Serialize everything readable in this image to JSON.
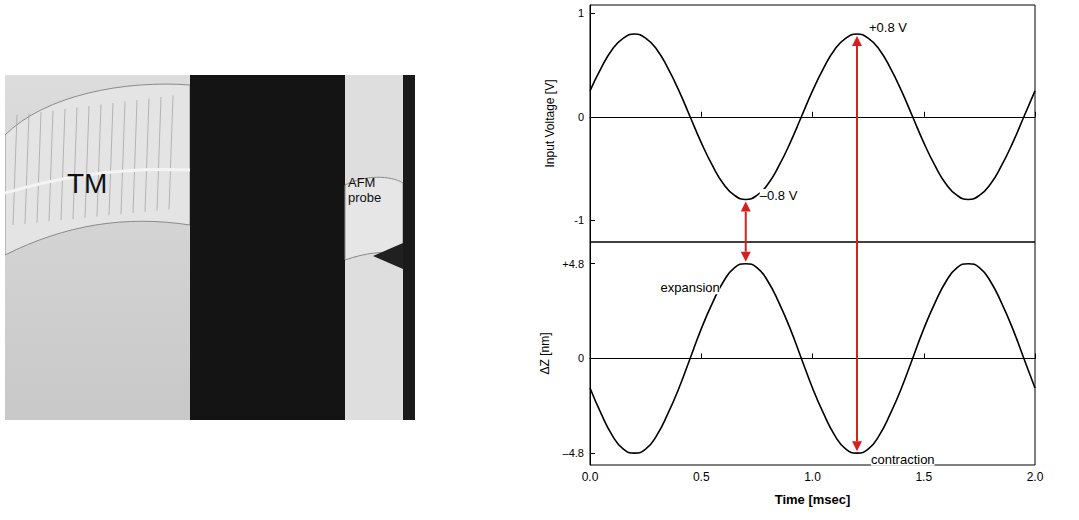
{
  "image_panel": {
    "labels": [
      "TM",
      "AFM probe"
    ]
  },
  "chart_data": [
    {
      "type": "line",
      "color": "#000000",
      "grid": false,
      "tick_labels": "y",
      "y_label": "Input Voltage [V]",
      "x": [
        0,
        0.05,
        0.1,
        0.15,
        0.2,
        0.25,
        0.3,
        0.35,
        0.4,
        0.45,
        0.5,
        0.55,
        0.6,
        0.65,
        0.7,
        0.75,
        0.8,
        0.85,
        0.9,
        0.95,
        1,
        1.05,
        1.1,
        1.15,
        1.2,
        1.25,
        1.3,
        1.35,
        1.4,
        1.45,
        1.5,
        1.55,
        1.6,
        1.65,
        1.7,
        1.75,
        1.8,
        1.85,
        1.9,
        1.95,
        2
      ],
      "values": [
        0.25,
        0.47,
        0.65,
        0.76,
        0.8,
        0.76,
        0.65,
        0.47,
        0.25,
        0,
        -0.25,
        -0.47,
        -0.65,
        -0.76,
        -0.8,
        -0.76,
        -0.65,
        -0.47,
        -0.25,
        0,
        0.25,
        0.47,
        0.65,
        0.76,
        0.8,
        0.76,
        0.65,
        0.47,
        0.25,
        0,
        -0.25,
        -0.47,
        -0.65,
        -0.76,
        -0.8,
        -0.76,
        -0.65,
        -0.47,
        -0.25,
        0,
        0.25
      ],
      "xlim": [
        0,
        2
      ],
      "xticks": [
        {
          "value": 0,
          "label": "0.0"
        },
        0.5,
        {
          "value": 1,
          "label": "1.0"
        },
        1.5,
        {
          "value": 2,
          "label": "2.0"
        }
      ],
      "ylim": [
        -1.21,
        1.08
      ],
      "yticks": [
        -1,
        0,
        1
      ],
      "annotations": [
        {
          "text": "+0.8 V",
          "x": 1.2,
          "y": 0.8
        },
        {
          "text": "–0.8 V",
          "x": 0.7,
          "y": -0.8
        }
      ]
    },
    {
      "type": "line",
      "color": "#000000",
      "grid": false,
      "tick_labels": true,
      "x_label": "Time [msec]",
      "y_label": "ΔZ [nm]",
      "x": [
        0,
        0.05,
        0.1,
        0.15,
        0.2,
        0.25,
        0.3,
        0.35,
        0.4,
        0.45,
        0.5,
        0.55,
        0.6,
        0.65,
        0.7,
        0.75,
        0.8,
        0.85,
        0.9,
        0.95,
        1,
        1.05,
        1.1,
        1.15,
        1.2,
        1.25,
        1.3,
        1.35,
        1.4,
        1.45,
        1.5,
        1.55,
        1.6,
        1.65,
        1.7,
        1.75,
        1.8,
        1.85,
        1.9,
        1.95,
        2
      ],
      "values": [
        -1.5,
        -2.8,
        -3.9,
        -4.6,
        -4.8,
        -4.6,
        -3.9,
        -2.8,
        -1.5,
        0,
        1.5,
        2.8,
        3.9,
        4.6,
        4.8,
        4.6,
        3.9,
        2.8,
        1.5,
        0,
        -1.5,
        -2.8,
        -3.9,
        -4.6,
        -4.8,
        -4.6,
        -3.9,
        -2.8,
        -1.5,
        0,
        1.5,
        2.8,
        3.9,
        4.6,
        4.8,
        4.6,
        3.9,
        2.8,
        1.5,
        0,
        -1.5
      ],
      "xlim": [
        0,
        2
      ],
      "xticks": [
        {
          "value": 0,
          "label": "0.0"
        },
        0.5,
        {
          "value": 1,
          "label": "1.0"
        },
        1.5,
        {
          "value": 2,
          "label": "2.0"
        }
      ],
      "ylim": [
        -5.4,
        5.9
      ],
      "yticks": [
        {
          "value": -4.8,
          "label": "–4.8"
        },
        0,
        {
          "value": 4.8,
          "label": "+4.8"
        }
      ],
      "annotations": [
        {
          "text": "expansion",
          "x": 0.7,
          "y": 4.8
        },
        {
          "text": "contraction",
          "x": 1.2,
          "y": -4.8
        }
      ]
    }
  ]
}
